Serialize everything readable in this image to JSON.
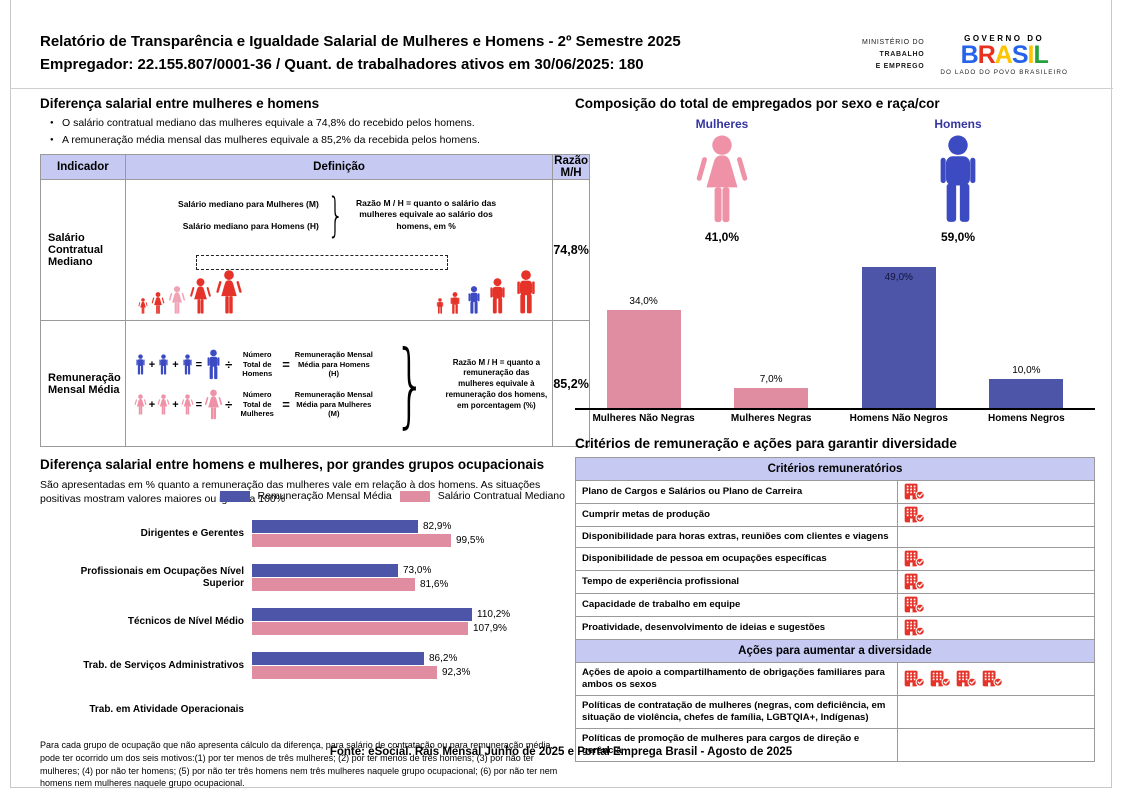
{
  "colors": {
    "blue": "#4c55a8",
    "pink": "#e18da1",
    "red": "#e6332a",
    "icon_blue": "#3c4bc2",
    "icon_pink": "#ef92a7",
    "highlight_pink": "#f0a3b5",
    "lavender": "#c6caf2",
    "navy_label": "#3535a0"
  },
  "header": {
    "title_line1": "Relatório de Transparência e Igualdade Salarial de Mulheres e Homens - 2º Semestre 2025",
    "title_line2": "Empregador: 22.155.807/0001-36 / Quant. de trabalhadores ativos em 30/06/2025: 180",
    "ministry_line1": "MINISTÉRIO DO",
    "ministry_line2": "TRABALHO",
    "ministry_line3": "E EMPREGO",
    "gov_top": "GOVERNO DO",
    "gov_brand": "BRASIL",
    "gov_brand_colors": [
      "#2563eb",
      "#e8301f",
      "#fdc500",
      "#2563eb",
      "#fdc500",
      "#23a13b"
    ],
    "gov_bottom": "DO LADO DO POVO BRASILEIRO"
  },
  "section_pay_gap": {
    "title": "Diferença salarial entre mulheres e homens",
    "bullets": [
      "O salário contratual mediano das mulheres equivale a 74,8% do recebido pelos homens.",
      "A remuneração média mensal das mulheres equivale a 85,2% da recebida pelos homens."
    ],
    "table": {
      "headers": [
        "Indicador",
        "Definição",
        "Razão M/H"
      ],
      "rows": [
        {
          "indicator": "Salário Contratual Mediano",
          "ratio": "74,8%",
          "def_line1": "Salário mediano para Mulheres (M)",
          "def_line2": "Salário mediano para Homens (H)",
          "note": "Razão M / H = quanto o salário das mulheres equivale ao salário dos homens, em %"
        },
        {
          "indicator": "Remuneração Mensal Média",
          "ratio": "85,2%",
          "plus": "+",
          "equals": "=",
          "divide": "÷",
          "men_divisor": "Número Total de Homens",
          "men_result": "Remuneração Mensal Média para Homens (H)",
          "women_divisor": "Número Total de Mulheres",
          "women_result": "Remuneração Mensal Média para Mulheres (M)",
          "note": "Razão M / H = quanto a remuneração das mulheres equivale à remuneração dos homens, em porcentagem (%)"
        }
      ]
    }
  },
  "section_composition": {
    "title": "Composição do total de empregados por sexo e raça/cor",
    "female_label": "Mulheres",
    "female_pct": "41,0%",
    "male_label": "Homens",
    "male_pct": "59,0%"
  },
  "section_occupational": {
    "title": "Diferença salarial entre homens e mulheres, por grandes grupos ocupacionais",
    "subtitle": "São apresentadas em % quanto a remuneração das mulheres vale em relação à dos homens. As situações positivas mostram valores maiores ou iguais a 100%",
    "footnote": "Para cada grupo de ocupação que não apresenta cálculo da diferença, para salário de contratação ou para remuneração média, pode ter ocorrido um dos seis motivos:(1) por ter menos de três mulheres; (2) por ter menos de três homens; (3) por não ter mulheres; (4) por não ter homens; (5) por não ter três homens nem três mulheres naquele grupo ocupacional; (6) por não ter nem homens nem mulheres naquele grupo ocupacional."
  },
  "section_criteria": {
    "title": "Critérios de remuneração e ações para garantir diversidade",
    "groups": [
      {
        "header": "Critérios remuneratórios",
        "rows": [
          {
            "label": "Plano de Cargos e Salários ou Plano de Carreira",
            "icons": 1
          },
          {
            "label": "Cumprir metas de produção",
            "icons": 1
          },
          {
            "label": "Disponibilidade para horas extras, reuniões com clientes e viagens",
            "icons": 0
          },
          {
            "label": "Disponibilidade de pessoa em ocupações específicas",
            "icons": 1
          },
          {
            "label": "Tempo de experiência profissional",
            "icons": 1
          },
          {
            "label": "Capacidade de trabalho em equipe",
            "icons": 1
          },
          {
            "label": "Proatividade, desenvolvimento de ideias e sugestões",
            "icons": 1
          }
        ]
      },
      {
        "header": "Ações para aumentar a diversidade",
        "rows": [
          {
            "label": "Ações de apoio a compartilhamento de obrigações familiares para ambos os sexos",
            "icons": 4
          },
          {
            "label": "Políticas de contratação de mulheres (negras, com deficiência, em situação de violência, chefes de família, LGBTQIA+, Indígenas)",
            "icons": 0
          },
          {
            "label": "Políticas de promoção de mulheres para cargos de direção e gerência",
            "icons": 0
          }
        ]
      }
    ]
  },
  "chart_data": [
    {
      "id": "composition",
      "type": "bar",
      "title": "Composição do total de empregados por sexo e raça/cor",
      "categories": [
        "Mulheres Não Negras",
        "Mulheres Negras",
        "Homens Não Negros",
        "Homens Negros"
      ],
      "values": [
        34.0,
        7.0,
        49.0,
        10.0
      ],
      "labels": [
        "34,0%",
        "7,0%",
        "49,0%",
        "10,0%"
      ],
      "bar_colors": [
        "pink",
        "pink",
        "blue",
        "blue"
      ],
      "ylim": [
        0,
        52
      ],
      "label_inside_index": 2,
      "grid": false
    },
    {
      "id": "occupational",
      "type": "grouped-horizontal-bar",
      "title": "Diferença salarial entre homens e mulheres, por grandes grupos ocupacionais",
      "categories": [
        "Dirigentes e Gerentes",
        "Profissionais em Ocupações Nível Superior",
        "Técnicos de Nível Médio",
        "Trab. de Serviços Administrativos",
        "Trab. em Atividade Operacionais"
      ],
      "series": [
        {
          "name": "Remuneração Mensal Média",
          "color": "blue",
          "values": [
            82.9,
            73.0,
            110.2,
            86.2,
            null
          ],
          "labels": [
            "82,9%",
            "73,0%",
            "110,2%",
            "86,2%",
            ""
          ]
        },
        {
          "name": "Salário Contratual Mediano",
          "color": "pink",
          "values": [
            99.5,
            81.6,
            107.9,
            92.3,
            null
          ],
          "labels": [
            "99,5%",
            "81,6%",
            "107,9%",
            "92,3%",
            ""
          ]
        }
      ],
      "xmax": 115,
      "legend_position": "top-right",
      "grid": false
    }
  ],
  "footer": {
    "source": "Fonte: eSocial. Rais Mensal Junho de 2025 e Portal Emprega Brasil - Agosto de 2025"
  }
}
